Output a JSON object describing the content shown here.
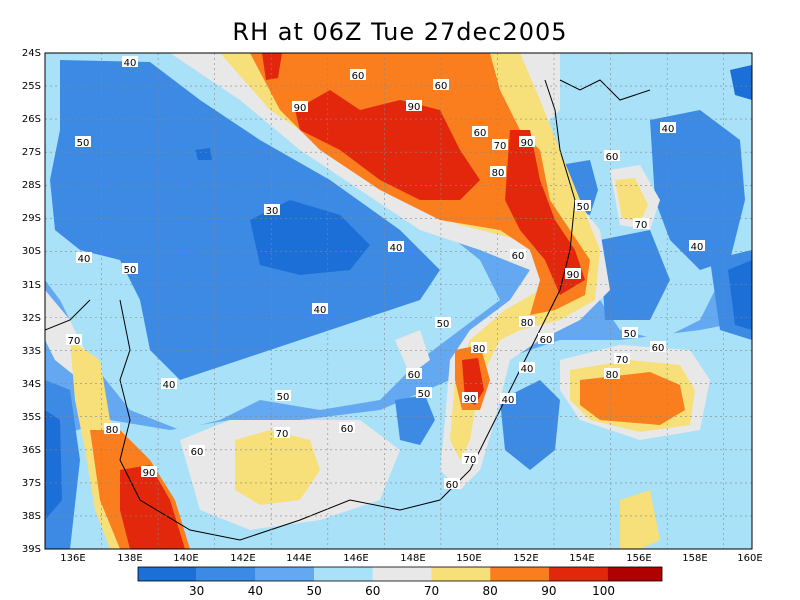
{
  "title": "RH at 06Z Tue 27dec2005",
  "axes": {
    "lat_labels": [
      "24S",
      "25S",
      "26S",
      "27S",
      "28S",
      "29S",
      "30S",
      "31S",
      "32S",
      "33S",
      "34S",
      "35S",
      "36S",
      "37S",
      "38S",
      "39S"
    ],
    "lon_labels": [
      "136E",
      "138E",
      "140E",
      "142E",
      "144E",
      "146E",
      "148E",
      "150E",
      "152E",
      "154E",
      "156E",
      "158E",
      "160E"
    ]
  },
  "colorbar": {
    "labels": [
      "30",
      "40",
      "50",
      "60",
      "70",
      "80",
      "90",
      "100"
    ],
    "colors": [
      "#1c6fd6",
      "#3d8ae4",
      "#63a8f0",
      "#a8e1f8",
      "#e8e8e8",
      "#f7df7a",
      "#fa7d1e",
      "#e3270d",
      "#b00000",
      "#900000"
    ]
  },
  "contour_labels": [
    {
      "text": "40"
    },
    {
      "text": "60"
    },
    {
      "text": "60"
    },
    {
      "text": "50"
    },
    {
      "text": "90"
    },
    {
      "text": "90"
    },
    {
      "text": "60"
    },
    {
      "text": "70"
    },
    {
      "text": "90"
    },
    {
      "text": "40"
    },
    {
      "text": "60"
    },
    {
      "text": "80"
    },
    {
      "text": "50"
    },
    {
      "text": "30"
    },
    {
      "text": "70"
    },
    {
      "text": "40"
    },
    {
      "text": "40"
    },
    {
      "text": "60"
    },
    {
      "text": "50"
    },
    {
      "text": "90"
    },
    {
      "text": "40"
    },
    {
      "text": "80"
    },
    {
      "text": "50"
    },
    {
      "text": "40"
    },
    {
      "text": "50"
    },
    {
      "text": "70"
    },
    {
      "text": "80"
    },
    {
      "text": "60"
    },
    {
      "text": "60"
    },
    {
      "text": "80"
    },
    {
      "text": "40"
    },
    {
      "text": "60"
    },
    {
      "text": "70"
    },
    {
      "text": "40"
    },
    {
      "text": "50"
    },
    {
      "text": "50"
    },
    {
      "text": "90"
    },
    {
      "text": "40"
    },
    {
      "text": "80"
    },
    {
      "text": "70"
    },
    {
      "text": "60"
    },
    {
      "text": "90"
    },
    {
      "text": "60"
    },
    {
      "text": "70"
    },
    {
      "text": "60"
    }
  ]
}
